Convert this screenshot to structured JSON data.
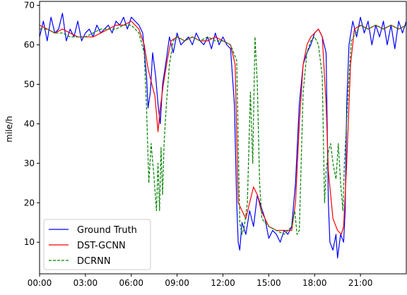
{
  "chart_data": {
    "type": "line",
    "title": "",
    "xlabel": "",
    "ylabel": "mile/h",
    "xlim": [
      0,
      24
    ],
    "ylim": [
      2,
      71
    ],
    "x_ticks": [
      0,
      3,
      6,
      9,
      12,
      15,
      18,
      21
    ],
    "x_tick_labels": [
      "00:00",
      "03:00",
      "06:00",
      "09:00",
      "12:00",
      "15:00",
      "18:00",
      "21:00"
    ],
    "y_ticks": [
      10,
      20,
      30,
      40,
      50,
      60,
      70
    ],
    "y_tick_labels": [
      "10",
      "20",
      "30",
      "40",
      "50",
      "60",
      "70"
    ],
    "grid": false,
    "legend_position": "bottom-left",
    "series": [
      {
        "name": "Ground Truth",
        "color": "#0000ff",
        "style": "solid",
        "points": [
          [
            0,
            62
          ],
          [
            0.25,
            66
          ],
          [
            0.5,
            61
          ],
          [
            0.75,
            67
          ],
          [
            1,
            63
          ],
          [
            1.25,
            64
          ],
          [
            1.5,
            68
          ],
          [
            1.75,
            61
          ],
          [
            2,
            64
          ],
          [
            2.25,
            62
          ],
          [
            2.5,
            66
          ],
          [
            2.75,
            61
          ],
          [
            3,
            63
          ],
          [
            3.25,
            64
          ],
          [
            3.5,
            62
          ],
          [
            3.75,
            65
          ],
          [
            4,
            63
          ],
          [
            4.25,
            64
          ],
          [
            4.5,
            65
          ],
          [
            4.75,
            63
          ],
          [
            5,
            66
          ],
          [
            5.25,
            65
          ],
          [
            5.5,
            67
          ],
          [
            5.75,
            64
          ],
          [
            6,
            67
          ],
          [
            6.25,
            66
          ],
          [
            6.5,
            65
          ],
          [
            6.75,
            63
          ],
          [
            7.0,
            52
          ],
          [
            7.1,
            44
          ],
          [
            7.25,
            48
          ],
          [
            7.4,
            58
          ],
          [
            7.6,
            52
          ],
          [
            7.75,
            45
          ],
          [
            7.9,
            40
          ],
          [
            8.05,
            50
          ],
          [
            8.25,
            55
          ],
          [
            8.5,
            62
          ],
          [
            8.75,
            58
          ],
          [
            9,
            63
          ],
          [
            9.25,
            60
          ],
          [
            9.5,
            61
          ],
          [
            9.75,
            62
          ],
          [
            10,
            60
          ],
          [
            10.25,
            63
          ],
          [
            10.5,
            61
          ],
          [
            10.75,
            60
          ],
          [
            11,
            62
          ],
          [
            11.25,
            59
          ],
          [
            11.5,
            63
          ],
          [
            11.75,
            60
          ],
          [
            12,
            62
          ],
          [
            12.25,
            60
          ],
          [
            12.5,
            59
          ],
          [
            12.75,
            45
          ],
          [
            12.9,
            20
          ],
          [
            13.0,
            10
          ],
          [
            13.1,
            8
          ],
          [
            13.25,
            15
          ],
          [
            13.5,
            12
          ],
          [
            13.75,
            18
          ],
          [
            14,
            14
          ],
          [
            14.25,
            22
          ],
          [
            14.5,
            19
          ],
          [
            14.75,
            16
          ],
          [
            15,
            11
          ],
          [
            15.25,
            13
          ],
          [
            15.5,
            12
          ],
          [
            15.75,
            10
          ],
          [
            16,
            13
          ],
          [
            16.25,
            12
          ],
          [
            16.5,
            14
          ],
          [
            16.75,
            25
          ],
          [
            17,
            45
          ],
          [
            17.25,
            55
          ],
          [
            17.5,
            58
          ],
          [
            17.75,
            60
          ],
          [
            18,
            63
          ],
          [
            18.25,
            64
          ],
          [
            18.5,
            62
          ],
          [
            18.75,
            58
          ],
          [
            18.9,
            20
          ],
          [
            19.0,
            10
          ],
          [
            19.2,
            8
          ],
          [
            19.4,
            12
          ],
          [
            19.5,
            6
          ],
          [
            19.7,
            12
          ],
          [
            19.9,
            10
          ],
          [
            20.0,
            18
          ],
          [
            20.1,
            45
          ],
          [
            20.25,
            60
          ],
          [
            20.5,
            66
          ],
          [
            20.75,
            62
          ],
          [
            21,
            67
          ],
          [
            21.25,
            63
          ],
          [
            21.5,
            66
          ],
          [
            21.75,
            60
          ],
          [
            22,
            65
          ],
          [
            22.25,
            62
          ],
          [
            22.5,
            66
          ],
          [
            22.75,
            60
          ],
          [
            23,
            65
          ],
          [
            23.25,
            59
          ],
          [
            23.5,
            66
          ],
          [
            23.75,
            63
          ],
          [
            24,
            66
          ]
        ]
      },
      {
        "name": "DST-GCNN",
        "color": "#ff0000",
        "style": "solid",
        "points": [
          [
            0,
            65
          ],
          [
            0.5,
            64
          ],
          [
            1,
            63
          ],
          [
            1.5,
            64
          ],
          [
            2,
            63
          ],
          [
            2.5,
            62
          ],
          [
            3,
            62
          ],
          [
            3.5,
            62
          ],
          [
            4,
            63
          ],
          [
            4.5,
            64
          ],
          [
            5,
            65
          ],
          [
            5.5,
            65
          ],
          [
            6,
            66
          ],
          [
            6.5,
            64
          ],
          [
            6.85,
            60
          ],
          [
            7.1,
            54
          ],
          [
            7.35,
            50
          ],
          [
            7.55,
            47
          ],
          [
            7.75,
            38
          ],
          [
            7.9,
            44
          ],
          [
            8.1,
            50
          ],
          [
            8.35,
            56
          ],
          [
            8.6,
            61
          ],
          [
            9,
            62
          ],
          [
            9.5,
            61
          ],
          [
            10,
            62
          ],
          [
            10.5,
            61
          ],
          [
            11,
            61
          ],
          [
            11.5,
            62
          ],
          [
            12,
            61
          ],
          [
            12.5,
            60
          ],
          [
            12.8,
            55
          ],
          [
            13.0,
            20
          ],
          [
            13.25,
            18
          ],
          [
            13.5,
            16
          ],
          [
            13.75,
            20
          ],
          [
            14.0,
            24
          ],
          [
            14.25,
            22
          ],
          [
            14.5,
            18
          ],
          [
            14.75,
            16
          ],
          [
            15,
            14
          ],
          [
            15.5,
            13
          ],
          [
            16,
            13
          ],
          [
            16.5,
            13
          ],
          [
            16.75,
            20
          ],
          [
            17,
            40
          ],
          [
            17.25,
            55
          ],
          [
            17.5,
            60
          ],
          [
            17.75,
            62
          ],
          [
            18,
            63
          ],
          [
            18.25,
            64
          ],
          [
            18.5,
            62
          ],
          [
            18.75,
            45
          ],
          [
            18.9,
            28
          ],
          [
            19.2,
            16
          ],
          [
            19.5,
            13
          ],
          [
            19.75,
            12
          ],
          [
            19.9,
            14
          ],
          [
            20.1,
            30
          ],
          [
            20.35,
            55
          ],
          [
            20.6,
            64
          ],
          [
            21,
            65
          ],
          [
            21.5,
            64
          ],
          [
            22,
            65
          ],
          [
            22.5,
            64
          ],
          [
            23,
            65
          ],
          [
            23.5,
            64
          ],
          [
            24,
            65
          ]
        ]
      },
      {
        "name": "DCRNN",
        "color": "#008000",
        "style": "dashed",
        "points": [
          [
            0,
            64
          ],
          [
            0.5,
            64
          ],
          [
            1,
            63
          ],
          [
            1.5,
            63
          ],
          [
            2,
            62
          ],
          [
            2.5,
            62
          ],
          [
            3,
            62
          ],
          [
            3.5,
            63
          ],
          [
            4,
            64
          ],
          [
            4.5,
            64
          ],
          [
            5,
            64
          ],
          [
            5.5,
            65
          ],
          [
            6,
            65
          ],
          [
            6.5,
            63
          ],
          [
            6.85,
            58
          ],
          [
            7.0,
            44
          ],
          [
            7.15,
            25
          ],
          [
            7.3,
            35
          ],
          [
            7.5,
            26
          ],
          [
            7.65,
            18
          ],
          [
            7.75,
            30
          ],
          [
            7.85,
            18
          ],
          [
            7.95,
            34
          ],
          [
            8.05,
            22
          ],
          [
            8.15,
            35
          ],
          [
            8.3,
            45
          ],
          [
            8.5,
            55
          ],
          [
            8.75,
            61
          ],
          [
            9,
            62
          ],
          [
            9.5,
            61
          ],
          [
            10,
            62
          ],
          [
            10.5,
            61
          ],
          [
            11,
            62
          ],
          [
            11.5,
            61
          ],
          [
            12,
            61
          ],
          [
            12.5,
            60
          ],
          [
            12.9,
            56
          ],
          [
            13.1,
            15
          ],
          [
            13.25,
            12
          ],
          [
            13.4,
            14
          ],
          [
            13.6,
            20
          ],
          [
            13.8,
            48
          ],
          [
            13.95,
            30
          ],
          [
            14.1,
            62
          ],
          [
            14.25,
            50
          ],
          [
            14.4,
            25
          ],
          [
            14.55,
            16
          ],
          [
            14.75,
            15
          ],
          [
            15,
            14
          ],
          [
            15.5,
            13
          ],
          [
            16,
            12
          ],
          [
            16.25,
            13
          ],
          [
            16.5,
            14
          ],
          [
            16.7,
            18
          ],
          [
            16.85,
            12
          ],
          [
            17.0,
            13
          ],
          [
            17.25,
            48
          ],
          [
            17.5,
            58
          ],
          [
            17.75,
            61
          ],
          [
            18,
            62
          ],
          [
            18.25,
            60
          ],
          [
            18.5,
            52
          ],
          [
            18.65,
            20
          ],
          [
            18.75,
            28
          ],
          [
            18.9,
            33
          ],
          [
            19.05,
            35
          ],
          [
            19.2,
            30
          ],
          [
            19.4,
            26
          ],
          [
            19.55,
            35
          ],
          [
            19.7,
            25
          ],
          [
            19.85,
            18
          ],
          [
            19.95,
            30
          ],
          [
            20.2,
            48
          ],
          [
            20.4,
            61
          ],
          [
            21,
            65
          ],
          [
            21.5,
            64
          ],
          [
            22,
            65
          ],
          [
            22.5,
            64
          ],
          [
            23,
            65
          ],
          [
            23.5,
            64
          ],
          [
            24,
            65
          ]
        ]
      }
    ]
  }
}
